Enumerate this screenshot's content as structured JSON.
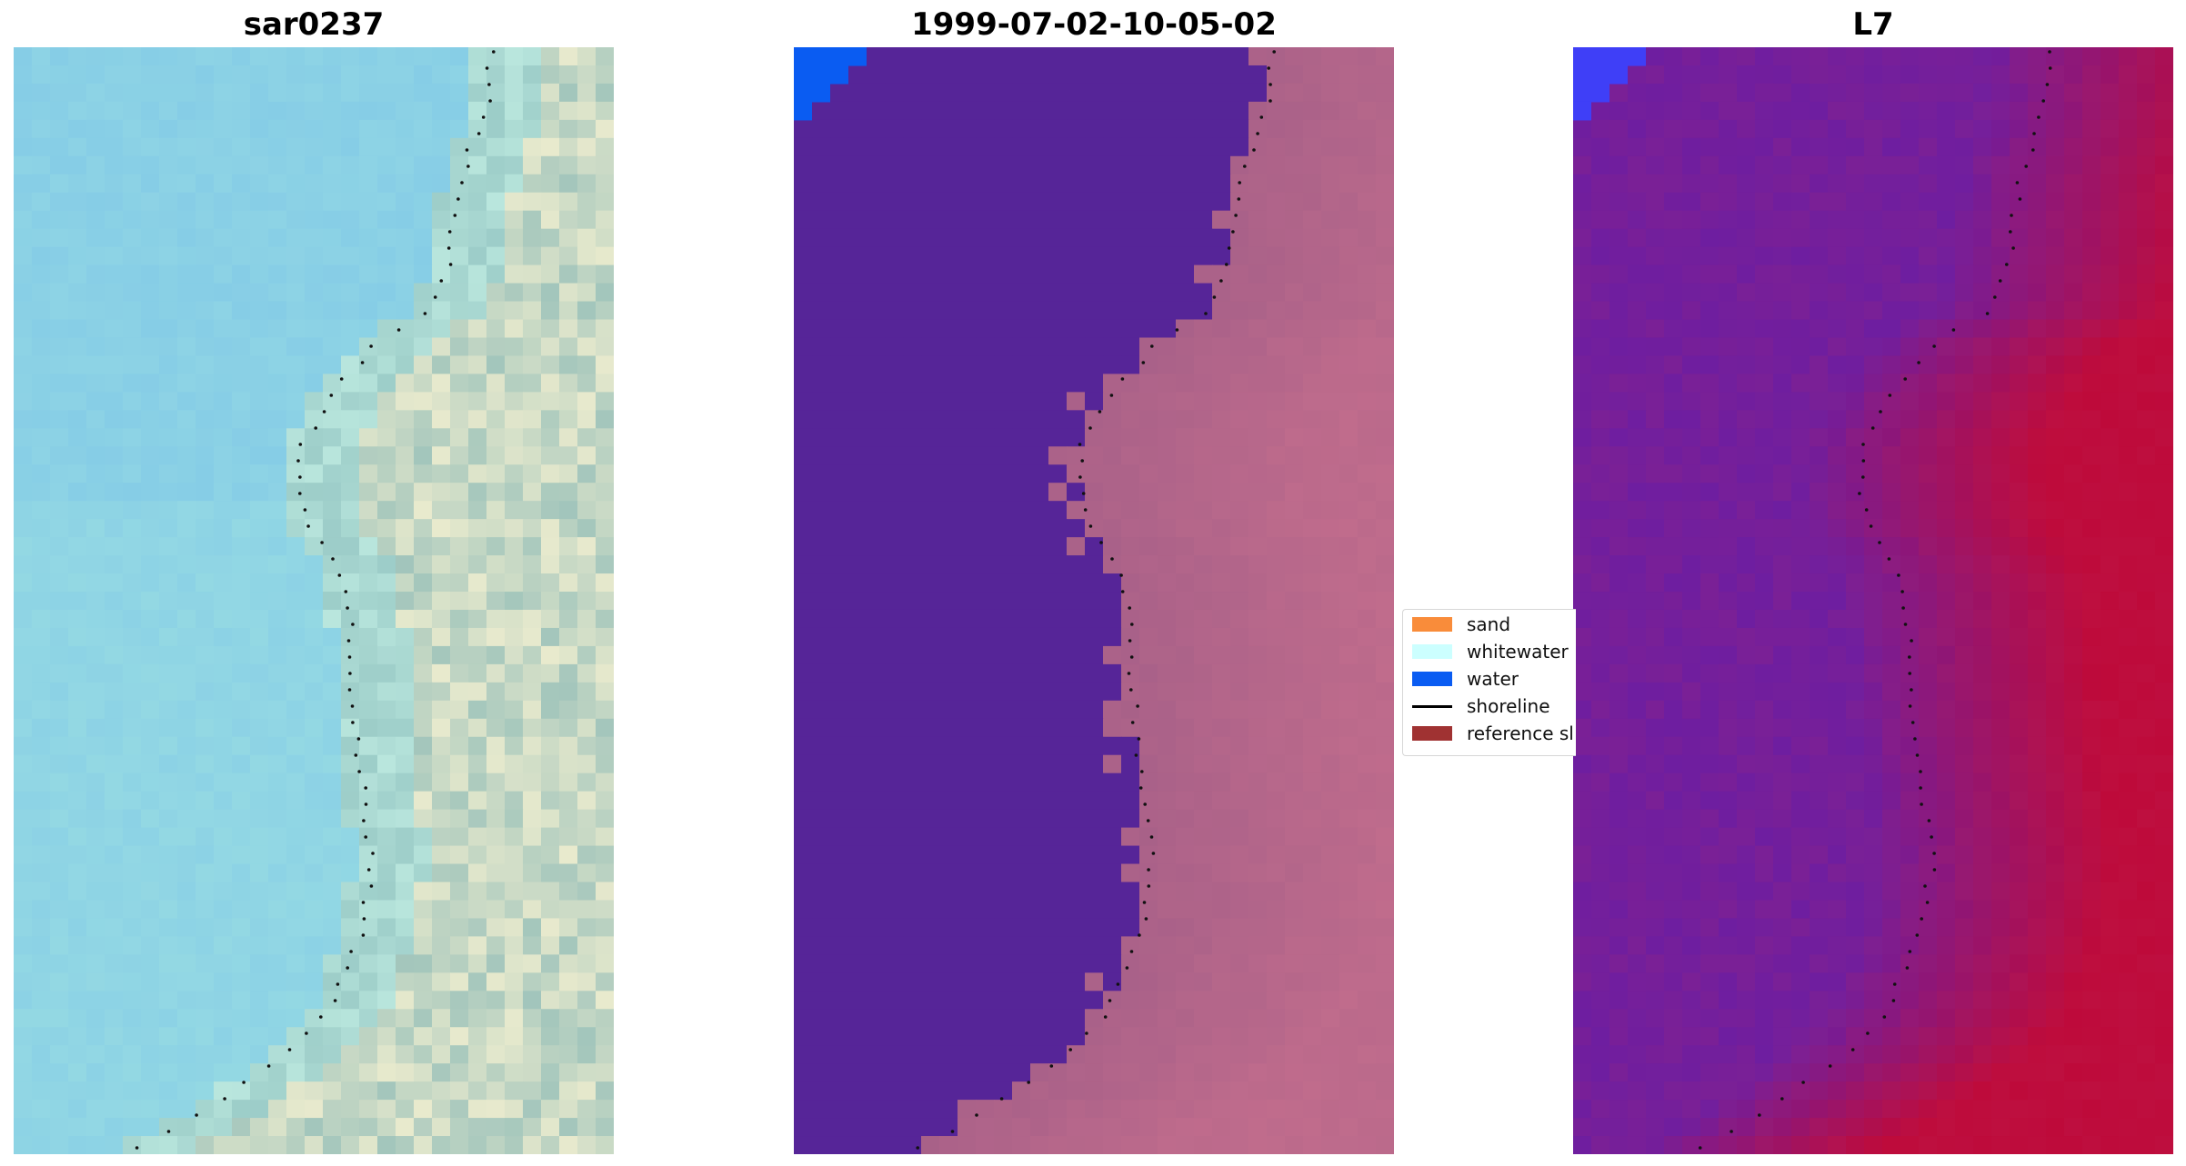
{
  "panels": [
    {
      "title": "sar0237",
      "style": "rgb",
      "colors": {
        "water": "#86cde6",
        "land": "#a6d1c9",
        "bright": "#f4f0d0",
        "dark": "#7fb3b3"
      }
    },
    {
      "title": "1999-07-02-10-05-02",
      "style": "classified",
      "colors": {
        "water": "#562598",
        "land": "#a55f88",
        "bright": "#c06c8c",
        "corner": "#0a5cf2"
      }
    },
    {
      "title": "L7",
      "style": "index",
      "colors": {
        "water": "#6e1ea0",
        "land": "#c02a5c",
        "bright": "#be0a3a",
        "corner": "#3f3ff7"
      }
    }
  ],
  "legend": {
    "items": [
      {
        "label": "sand",
        "color": "#f98c3a",
        "type": "patch"
      },
      {
        "label": "whitewater",
        "color": "#ccffff",
        "type": "patch"
      },
      {
        "label": "water",
        "color": "#0a5cf2",
        "type": "patch"
      },
      {
        "label": "shoreline",
        "color": "#000000",
        "type": "line"
      },
      {
        "label": "reference sl",
        "color": "#a03232",
        "type": "patch"
      }
    ]
  },
  "shoreline_dots": "#111111"
}
